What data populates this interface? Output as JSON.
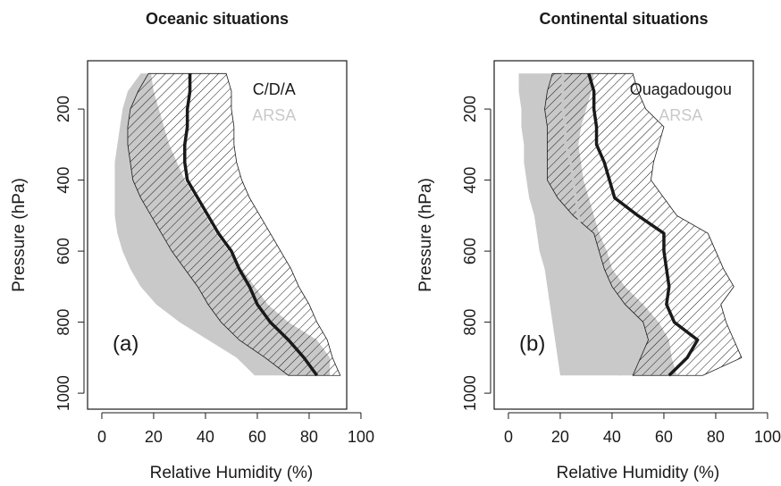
{
  "chart_data": [
    {
      "type": "profile",
      "title": "Oceanic situations",
      "x_label": "Relative Humidity (%)",
      "y_label": "Pressure (hPa)",
      "panel_label": "(a)",
      "legend": "topright",
      "y": [
        100,
        150,
        200,
        250,
        300,
        350,
        400,
        450,
        500,
        550,
        600,
        650,
        700,
        750,
        800,
        850,
        900,
        950
      ],
      "xlim": [
        -5.5,
        94.5
      ],
      "xticks": [
        0,
        20,
        40,
        60,
        80,
        100
      ],
      "ylim": [
        1045,
        64
      ],
      "yticks": [
        200,
        400,
        600,
        800,
        1000
      ],
      "series": [
        {
          "name": "ARSA",
          "color": "#c9c9c9",
          "fill": "solid",
          "low": [
            15,
            10,
            8,
            7,
            6,
            5,
            5,
            5,
            5,
            6,
            8,
            11,
            15,
            21,
            30,
            41,
            52,
            59
          ],
          "high": [
            19,
            20,
            22,
            24,
            26,
            29,
            32,
            36,
            40,
            44,
            49,
            54,
            59,
            64,
            72,
            83,
            88,
            88
          ]
        },
        {
          "name": "C/D/A",
          "color": "#1a1a1a",
          "fill": "hatch",
          "low": [
            18,
            14,
            11,
            10,
            10,
            11,
            12,
            15,
            19,
            23,
            27,
            32,
            37,
            41,
            46,
            53,
            63,
            72
          ],
          "high": [
            48,
            50,
            50,
            51,
            51,
            52,
            54,
            57,
            61,
            65,
            69,
            73,
            76,
            80,
            83,
            87,
            89,
            92
          ],
          "values": [
            34,
            34,
            33,
            33,
            32,
            32,
            33,
            37,
            41,
            45,
            50,
            53,
            57,
            60,
            65,
            72,
            78,
            83
          ]
        }
      ]
    },
    {
      "type": "profile",
      "title": "Continental situations",
      "x_label": "Relative Humidity (%)",
      "y_label": "Pressure (hPa)",
      "panel_label": "(b)",
      "legend": "topright",
      "y": [
        100,
        150,
        200,
        250,
        300,
        350,
        400,
        450,
        500,
        550,
        600,
        650,
        700,
        750,
        800,
        850,
        900,
        950
      ],
      "xlim": [
        -5.5,
        94.5
      ],
      "xticks": [
        0,
        20,
        40,
        60,
        80,
        100
      ],
      "ylim": [
        1045,
        64
      ],
      "yticks": [
        200,
        400,
        600,
        800,
        1000
      ],
      "series": [
        {
          "name": "ARSA",
          "color": "#c9c9c9",
          "fill": "solid",
          "low": [
            4,
            4,
            5,
            5,
            6,
            6,
            7,
            8,
            10,
            11,
            12,
            14,
            15,
            16,
            17,
            18,
            19,
            20
          ],
          "high": [
            33,
            32,
            30,
            28,
            27,
            28,
            29,
            31,
            33,
            35,
            38,
            40,
            45,
            52,
            58,
            62,
            63,
            65
          ],
          "values": [
            21,
            21,
            21,
            22,
            22,
            24,
            25,
            26,
            27,
            28,
            29,
            31,
            34,
            37,
            39,
            41,
            42,
            43
          ]
        },
        {
          "name": "Ouagadougou",
          "color": "#1a1a1a",
          "fill": "hatch",
          "low": [
            17,
            15,
            14,
            15,
            15,
            15,
            15,
            19,
            25,
            33,
            35,
            37,
            40,
            45,
            52,
            54,
            51,
            48
          ],
          "high": [
            48,
            50,
            53,
            60,
            58,
            56,
            55,
            60,
            65,
            77,
            80,
            83,
            87,
            82,
            84,
            87,
            90,
            75
          ],
          "values": [
            31,
            33,
            33,
            34,
            34,
            37,
            39,
            41,
            50,
            60,
            60,
            61,
            62,
            61,
            64,
            73,
            69,
            62
          ]
        }
      ]
    }
  ]
}
